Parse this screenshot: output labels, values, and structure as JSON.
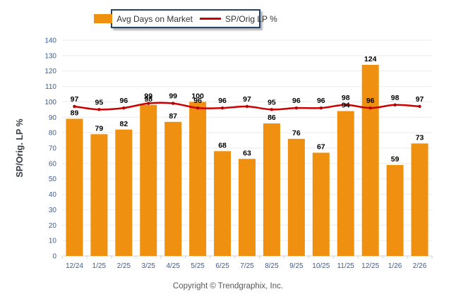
{
  "legend": {
    "bar_label": "Avg Days on Market",
    "line_label": "SP/Orig LP %"
  },
  "chart_data": {
    "type": "bar",
    "title": "",
    "categories": [
      "12/24",
      "1/25",
      "2/25",
      "3/25",
      "4/25",
      "5/25",
      "6/25",
      "7/25",
      "8/25",
      "9/25",
      "10/25",
      "11/25",
      "12/25",
      "1/26",
      "2/26"
    ],
    "series": [
      {
        "name": "Avg Days on Market",
        "type": "bar",
        "color": "#ef9011",
        "values": [
          89,
          79,
          82,
          98,
          87,
          100,
          68,
          63,
          86,
          76,
          67,
          94,
          124,
          59,
          73
        ]
      },
      {
        "name": "SP/Orig LP %",
        "type": "line",
        "color": "#cc0000",
        "values": [
          97,
          95,
          96,
          99,
          99,
          96,
          96,
          97,
          95,
          96,
          96,
          98,
          96,
          98,
          97
        ]
      }
    ],
    "xlabel": "",
    "ylabel": "SP/Orig. LP %",
    "ylim": [
      0,
      140
    ],
    "ytick_step": 10,
    "grid": true,
    "legend_position": "top",
    "value_labels": true
  },
  "axis_styles": {
    "tick_color": "#3d5c94",
    "grid_color": "#ebebeb",
    "axis_line_color": "#d2d2d2",
    "value_label_color": "#000000",
    "ylabel_color": "#333a47"
  },
  "footer": {
    "copyright": "Copyright © Trendgraphix, Inc."
  }
}
